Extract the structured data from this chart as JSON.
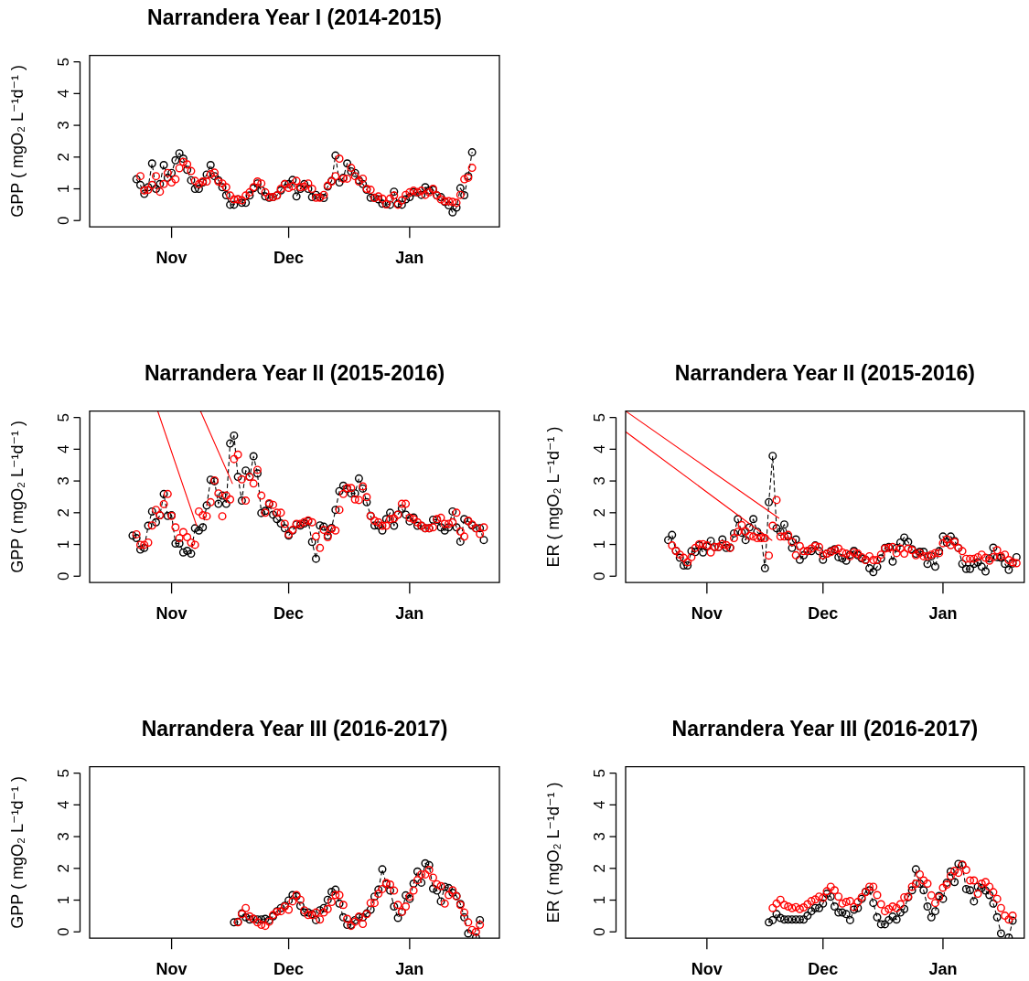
{
  "chart_data": [
    {
      "type": "scatter",
      "title": "Narrandera Year I (2014-2015)",
      "ylabel": "GPP ( mgO₂ L⁻¹d⁻¹ )",
      "marker": "circle",
      "line_style": "dashed",
      "xlim": [
        "2014-10-11",
        "2015-01-24"
      ],
      "xticks": [
        {
          "value": "2014-11-01",
          "label": "Nov"
        },
        {
          "value": "2014-12-01",
          "label": "Dec"
        },
        {
          "value": "2015-01-01",
          "label": "Jan"
        }
      ],
      "ylim": [
        -0.2,
        5.2
      ],
      "yticks": [
        0,
        1,
        2,
        3,
        4,
        5
      ],
      "x": [
        "2014-10-23",
        "2014-10-24",
        "2014-10-25",
        "2014-10-26",
        "2014-10-27",
        "2014-10-28",
        "2014-10-29",
        "2014-10-30",
        "2014-10-31",
        "2014-11-01",
        "2014-11-02",
        "2014-11-03",
        "2014-11-04",
        "2014-11-05",
        "2014-11-06",
        "2014-11-07",
        "2014-11-08",
        "2014-11-09",
        "2014-11-10",
        "2014-11-11",
        "2014-11-12",
        "2014-11-13",
        "2014-11-14",
        "2014-11-15",
        "2014-11-16",
        "2014-11-17",
        "2014-11-18",
        "2014-11-19",
        "2014-11-20",
        "2014-11-21",
        "2014-11-22",
        "2014-11-23",
        "2014-11-24",
        "2014-11-25",
        "2014-11-26",
        "2014-11-27",
        "2014-11-28",
        "2014-11-29",
        "2014-11-30",
        "2014-12-01",
        "2014-12-02",
        "2014-12-03",
        "2014-12-04",
        "2014-12-05",
        "2014-12-06",
        "2014-12-07",
        "2014-12-08",
        "2014-12-09",
        "2014-12-10",
        "2014-12-11",
        "2014-12-12",
        "2014-12-13",
        "2014-12-14",
        "2014-12-15",
        "2014-12-16",
        "2014-12-17",
        "2014-12-18",
        "2014-12-19",
        "2014-12-20",
        "2014-12-21",
        "2014-12-22",
        "2014-12-23",
        "2014-12-24",
        "2014-12-25",
        "2014-12-26",
        "2014-12-27",
        "2014-12-28",
        "2014-12-29",
        "2014-12-30",
        "2014-12-31",
        "2015-01-01",
        "2015-01-02",
        "2015-01-03",
        "2015-01-04",
        "2015-01-05",
        "2015-01-06",
        "2015-01-07",
        "2015-01-08",
        "2015-01-09",
        "2015-01-10",
        "2015-01-11",
        "2015-01-12",
        "2015-01-13",
        "2015-01-14",
        "2015-01-15",
        "2015-01-16",
        "2015-01-17"
      ],
      "series": [
        {
          "type": "line",
          "color": "#000000",
          "values": [
            1.3,
            1.12,
            0.84,
            1.05,
            1.8,
            1.0,
            1.15,
            1.75,
            1.35,
            1.5,
            1.9,
            2.12,
            1.95,
            1.6,
            1.27,
            1.0,
            1.0,
            1.2,
            1.45,
            1.75,
            1.4,
            1.27,
            1.05,
            0.8,
            0.5,
            0.5,
            0.67,
            0.56,
            0.56,
            0.79,
            1.02,
            1.17,
            0.95,
            0.76,
            0.72,
            0.74,
            0.79,
            0.95,
            1.15,
            1.15,
            1.28,
            0.76,
            1.0,
            1.15,
            1.0,
            0.74,
            0.81,
            0.74,
            0.71,
            1.07,
            1.25,
            2.05,
            1.2,
            1.35,
            1.8,
            1.55,
            1.5,
            1.27,
            1.15,
            0.97,
            0.72,
            0.72,
            0.67,
            0.53,
            0.52,
            0.5,
            0.91,
            0.53,
            0.5,
            0.67,
            0.74,
            0.89,
            0.89,
            0.81,
            1.05,
            0.95,
            0.97,
            0.79,
            0.74,
            0.59,
            0.48,
            0.26,
            0.41,
            1.02,
            0.8,
            1.4,
            2.15
          ]
        },
        {
          "color": "#ff0000",
          "values": [
            null,
            1.4,
            0.95,
            0.97,
            1.12,
            1.4,
            0.91,
            1.15,
            1.5,
            1.2,
            1.3,
            1.65,
            1.85,
            1.77,
            1.56,
            1.25,
            1.15,
            1.23,
            1.23,
            1.46,
            1.51,
            1.23,
            1.17,
            1.05,
            0.79,
            0.67,
            0.67,
            0.64,
            0.79,
            0.89,
            1.05,
            1.23,
            1.17,
            0.89,
            0.74,
            0.74,
            0.79,
            1.0,
            1.15,
            1.03,
            1.08,
            1.25,
            1.05,
            1.07,
            1.17,
            1.0,
            0.72,
            0.72,
            0.81,
            1.1,
            1.23,
            1.4,
            1.95,
            1.32,
            1.32,
            1.66,
            1.4,
            1.23,
            1.32,
            1.0,
            0.97,
            0.71,
            0.76,
            0.69,
            0.51,
            0.69,
            0.79,
            0.5,
            0.64,
            0.81,
            0.89,
            0.94,
            0.89,
            0.94,
            0.81,
            0.89,
            1.0,
            0.79,
            0.67,
            0.61,
            0.61,
            0.59,
            0.56,
            0.81,
            1.3,
            1.35,
            1.66
          ]
        }
      ]
    },
    {
      "type": "scatter",
      "title": "Narrandera Year II (2015-2016)",
      "ylabel": "GPP ( mgO₂ L⁻¹d⁻¹ )",
      "marker": "circle",
      "line_style": "dashed",
      "xlim": [
        "2015-10-11",
        "2016-01-24"
      ],
      "xticks": [
        {
          "value": "2015-11-01",
          "label": "Nov"
        },
        {
          "value": "2015-12-01",
          "label": "Dec"
        },
        {
          "value": "2016-01-01",
          "label": "Jan"
        }
      ],
      "ylim": [
        -0.2,
        5.2
      ],
      "yticks": [
        0,
        1,
        2,
        3,
        4,
        5
      ],
      "x": [
        "2015-10-22",
        "2015-10-23",
        "2015-10-24",
        "2015-10-25",
        "2015-10-26",
        "2015-10-27",
        "2015-10-28",
        "2015-10-29",
        "2015-10-30",
        "2015-10-31",
        "2015-11-01",
        "2015-11-02",
        "2015-11-03",
        "2015-11-04",
        "2015-11-05",
        "2015-11-06",
        "2015-11-07",
        "2015-11-08",
        "2015-11-09",
        "2015-11-10",
        "2015-11-11",
        "2015-11-12",
        "2015-11-13",
        "2015-11-14",
        "2015-11-15",
        "2015-11-16",
        "2015-11-17",
        "2015-11-18",
        "2015-11-19",
        "2015-11-20",
        "2015-11-21",
        "2015-11-22",
        "2015-11-23",
        "2015-11-24",
        "2015-11-25",
        "2015-11-26",
        "2015-11-27",
        "2015-11-28",
        "2015-11-29",
        "2015-11-30",
        "2015-12-01",
        "2015-12-02",
        "2015-12-03",
        "2015-12-04",
        "2015-12-05",
        "2015-12-06",
        "2015-12-07",
        "2015-12-08",
        "2015-12-09",
        "2015-12-10",
        "2015-12-11",
        "2015-12-12",
        "2015-12-13",
        "2015-12-14",
        "2015-12-15",
        "2015-12-16",
        "2015-12-17",
        "2015-12-18",
        "2015-12-19",
        "2015-12-20",
        "2015-12-21",
        "2015-12-22",
        "2015-12-23",
        "2015-12-24",
        "2015-12-25",
        "2015-12-26",
        "2015-12-27",
        "2015-12-28",
        "2015-12-29",
        "2015-12-30",
        "2015-12-31",
        "2016-01-01",
        "2016-01-02",
        "2016-01-03",
        "2016-01-04",
        "2016-01-05",
        "2016-01-06",
        "2016-01-07",
        "2016-01-08",
        "2016-01-09",
        "2016-01-10",
        "2016-01-11",
        "2016-01-12",
        "2016-01-13",
        "2016-01-14",
        "2016-01-15",
        "2016-01-16",
        "2016-01-17",
        "2016-01-18",
        "2016-01-19",
        "2016-01-20"
      ],
      "series": [
        {
          "type": "line",
          "color": "#000000",
          "values": [
            1.28,
            1.2,
            0.84,
            0.89,
            1.59,
            2.04,
            1.7,
            1.92,
            2.59,
            1.9,
            1.92,
            1.03,
            1.03,
            0.75,
            0.8,
            0.71,
            1.51,
            1.44,
            1.54,
            2.23,
            3.04,
            2.99,
            2.28,
            2.54,
            2.28,
            4.18,
            4.43,
            3.13,
            2.38,
            3.33,
            3.13,
            3.78,
            3.24,
            1.99,
            2.06,
            2.27,
            1.94,
            1.8,
            1.66,
            1.51,
            1.28,
            1.44,
            1.63,
            1.6,
            1.66,
            1.73,
            1.08,
            0.55,
            1.6,
            1.56,
            1.28,
            1.52,
            2.09,
            2.68,
            2.85,
            2.75,
            2.61,
            2.61,
            3.08,
            2.76,
            2.33,
            1.9,
            1.6,
            1.6,
            1.44,
            1.8,
            2.0,
            1.59,
            1.94,
            2.13,
            1.94,
            1.73,
            1.85,
            1.59,
            1.59,
            1.51,
            1.51,
            1.78,
            1.78,
            1.54,
            1.44,
            1.54,
            2.04,
            1.54,
            1.09,
            1.8,
            1.73,
            1.6,
            1.51,
            1.51,
            1.14
          ]
        },
        {
          "color": "#ff0000",
          "values": [
            null,
            1.32,
            0.99,
            0.99,
            1.06,
            1.6,
            2.09,
            1.92,
            2.27,
            2.59,
            1.9,
            1.54,
            1.2,
            1.39,
            1.23,
            1.06,
            0.99,
            2.04,
            1.92,
            1.89,
            2.33,
            3.02,
            2.61,
            1.89,
            2.54,
            2.42,
            3.69,
            3.83,
            3.05,
            2.38,
            3.13,
            2.92,
            3.35,
            2.54,
            2.0,
            2.3,
            2.25,
            2.0,
            2.0,
            1.65,
            1.32,
            1.46,
            1.65,
            1.65,
            1.71,
            1.76,
            1.7,
            1.25,
            0.89,
            1.46,
            1.23,
            1.49,
            1.44,
            2.09,
            2.59,
            2.78,
            2.78,
            2.42,
            2.4,
            2.83,
            2.49,
            1.9,
            1.75,
            1.7,
            1.59,
            1.59,
            1.8,
            1.82,
            1.94,
            2.28,
            2.28,
            1.84,
            1.8,
            1.7,
            1.59,
            1.51,
            1.51,
            1.54,
            1.8,
            1.84,
            1.65,
            1.65,
            1.7,
            2.0,
            1.41,
            1.25,
            1.75,
            1.63,
            1.51,
            1.33,
            1.54
          ]
        },
        {
          "type": "line",
          "color": "#ff0000",
          "marker": "none",
          "line_style": "solid",
          "x": [
            "2015-10-28T11:00",
            "2015-11-07T10:00"
          ],
          "values": [
            5.2,
            1.59
          ]
        },
        {
          "type": "line",
          "color": "#ff0000",
          "marker": "none",
          "line_style": "solid",
          "x": [
            "2015-11-08T10:00",
            "2015-11-16T14:00"
          ],
          "values": [
            5.2,
            2.92
          ]
        }
      ]
    },
    {
      "type": "scatter",
      "title": "Narrandera Year II (2015-2016)",
      "ylabel": "ER ( mgO₂ L⁻¹d⁻¹ )",
      "marker": "circle",
      "line_style": "dashed",
      "xlim": [
        "2015-10-11",
        "2016-01-22"
      ],
      "xticks": [
        {
          "value": "2015-11-01",
          "label": "Nov"
        },
        {
          "value": "2015-12-01",
          "label": "Dec"
        },
        {
          "value": "2016-01-01",
          "label": "Jan"
        }
      ],
      "ylim": [
        -0.2,
        5.2
      ],
      "yticks": [
        0,
        1,
        2,
        3,
        4,
        5
      ],
      "x": [
        "2015-10-22",
        "2015-10-23",
        "2015-10-24",
        "2015-10-25",
        "2015-10-26",
        "2015-10-27",
        "2015-10-28",
        "2015-10-29",
        "2015-10-30",
        "2015-10-31",
        "2015-11-01",
        "2015-11-02",
        "2015-11-03",
        "2015-11-04",
        "2015-11-05",
        "2015-11-06",
        "2015-11-07",
        "2015-11-08",
        "2015-11-09",
        "2015-11-10",
        "2015-11-11",
        "2015-11-12",
        "2015-11-13",
        "2015-11-14",
        "2015-11-15",
        "2015-11-16",
        "2015-11-17",
        "2015-11-18",
        "2015-11-19",
        "2015-11-20",
        "2015-11-21",
        "2015-11-22",
        "2015-11-23",
        "2015-11-24",
        "2015-11-25",
        "2015-11-26",
        "2015-11-27",
        "2015-11-28",
        "2015-11-29",
        "2015-11-30",
        "2015-12-01",
        "2015-12-02",
        "2015-12-03",
        "2015-12-04",
        "2015-12-05",
        "2015-12-06",
        "2015-12-07",
        "2015-12-08",
        "2015-12-09",
        "2015-12-10",
        "2015-12-11",
        "2015-12-12",
        "2015-12-13",
        "2015-12-14",
        "2015-12-15",
        "2015-12-16",
        "2015-12-17",
        "2015-12-18",
        "2015-12-19",
        "2015-12-20",
        "2015-12-21",
        "2015-12-22",
        "2015-12-23",
        "2015-12-24",
        "2015-12-25",
        "2015-12-26",
        "2015-12-27",
        "2015-12-28",
        "2015-12-29",
        "2015-12-30",
        "2015-12-31",
        "2016-01-01",
        "2016-01-02",
        "2016-01-03",
        "2016-01-04",
        "2016-01-05",
        "2016-01-06",
        "2016-01-07",
        "2016-01-08",
        "2016-01-09",
        "2016-01-10",
        "2016-01-11",
        "2016-01-12",
        "2016-01-13",
        "2016-01-14",
        "2016-01-15",
        "2016-01-16",
        "2016-01-17",
        "2016-01-18",
        "2016-01-19",
        "2016-01-20"
      ],
      "series": [
        {
          "type": "line",
          "color": "#000000",
          "values": [
            1.14,
            1.3,
            0.8,
            0.58,
            0.34,
            0.34,
            0.79,
            0.76,
            0.97,
            0.75,
            0.94,
            1.11,
            0.92,
            0.92,
            1.16,
            0.89,
            0.9,
            1.35,
            1.8,
            1.37,
            1.14,
            1.54,
            1.8,
            1.4,
            1.25,
            0.25,
            2.33,
            3.79,
            1.51,
            1.4,
            1.63,
            1.25,
            0.89,
            1.16,
            0.52,
            0.66,
            0.79,
            0.79,
            0.97,
            0.79,
            0.52,
            0.71,
            0.79,
            0.85,
            0.6,
            0.56,
            0.49,
            0.68,
            0.8,
            0.66,
            0.56,
            0.52,
            0.25,
            0.13,
            0.3,
            0.56,
            0.89,
            0.92,
            0.46,
            0.89,
            1.06,
            1.22,
            1.08,
            0.85,
            0.71,
            0.77,
            0.77,
            0.39,
            0.63,
            0.3,
            0.79,
            1.25,
            1.06,
            1.25,
            1.11,
            0.89,
            0.39,
            0.23,
            0.23,
            0.39,
            0.44,
            0.3,
            0.15,
            0.56,
            0.9,
            0.6,
            0.58,
            0.39,
            0.2,
            0.4,
            0.6
          ]
        },
        {
          "color": "#ff0000",
          "values": [
            null,
            0.97,
            0.8,
            0.68,
            0.58,
            0.44,
            0.6,
            0.89,
            1.01,
            1.01,
            0.97,
            0.75,
            0.92,
            0.92,
            1.01,
            0.98,
            0.89,
            1.2,
            1.4,
            1.61,
            1.41,
            1.27,
            1.25,
            1.2,
            1.2,
            1.2,
            0.65,
            1.59,
            2.4,
            1.25,
            1.25,
            1.3,
            1.08,
            0.66,
            0.95,
            0.79,
            0.79,
            0.87,
            0.95,
            0.92,
            0.66,
            0.71,
            0.76,
            0.82,
            0.87,
            0.75,
            0.71,
            0.63,
            0.75,
            0.71,
            0.6,
            0.51,
            0.63,
            0.51,
            0.51,
            0.68,
            0.87,
            0.89,
            0.92,
            0.73,
            0.87,
            0.71,
            0.87,
            0.82,
            0.66,
            0.73,
            0.63,
            0.63,
            0.68,
            0.73,
            0.73,
            1.04,
            1.16,
            0.98,
            1.08,
            0.89,
            0.79,
            0.55,
            0.55,
            0.55,
            0.6,
            0.68,
            0.58,
            0.49,
            0.6,
            0.82,
            0.63,
            0.68,
            0.51,
            0.44,
            0.41
          ]
        },
        {
          "type": "line",
          "color": "#ff0000",
          "marker": "none",
          "line_style": "solid",
          "x": [
            "2015-10-11",
            "2015-11-19T14:00"
          ],
          "values": [
            5.2,
            1.83
          ]
        },
        {
          "type": "line",
          "color": "#ff0000",
          "marker": "none",
          "line_style": "solid",
          "x": [
            "2015-10-11",
            "2015-11-17T19:00"
          ],
          "values": [
            4.55,
            1.13
          ]
        }
      ]
    },
    {
      "type": "scatter",
      "title": "Narrandera Year III (2016-2017)",
      "ylabel": "GPP ( mgO₂ L⁻¹d⁻¹ )",
      "marker": "circle",
      "line_style": "dashed",
      "xlim": [
        "2016-10-11",
        "2017-01-24"
      ],
      "xticks": [
        {
          "value": "2016-11-01",
          "label": "Nov"
        },
        {
          "value": "2016-12-01",
          "label": "Dec"
        },
        {
          "value": "2017-01-01",
          "label": "Jan"
        }
      ],
      "ylim": [
        -0.2,
        5.2
      ],
      "yticks": [
        0,
        1,
        2,
        3,
        4,
        5
      ],
      "x": [
        "2016-11-17",
        "2016-11-18",
        "2016-11-19",
        "2016-11-20",
        "2016-11-21",
        "2016-11-22",
        "2016-11-23",
        "2016-11-24",
        "2016-11-25",
        "2016-11-26",
        "2016-11-27",
        "2016-11-28",
        "2016-11-29",
        "2016-11-30",
        "2016-12-01",
        "2016-12-02",
        "2016-12-03",
        "2016-12-04",
        "2016-12-05",
        "2016-12-06",
        "2016-12-07",
        "2016-12-08",
        "2016-12-09",
        "2016-12-10",
        "2016-12-11",
        "2016-12-12",
        "2016-12-13",
        "2016-12-14",
        "2016-12-15",
        "2016-12-16",
        "2016-12-17",
        "2016-12-18",
        "2016-12-19",
        "2016-12-20",
        "2016-12-21",
        "2016-12-22",
        "2016-12-23",
        "2016-12-24",
        "2016-12-25",
        "2016-12-26",
        "2016-12-27",
        "2016-12-28",
        "2016-12-29",
        "2016-12-30",
        "2016-12-31",
        "2017-01-01",
        "2017-01-02",
        "2017-01-03",
        "2017-01-04",
        "2017-01-05",
        "2017-01-06",
        "2017-01-07",
        "2017-01-08",
        "2017-01-09",
        "2017-01-10",
        "2017-01-11",
        "2017-01-12",
        "2017-01-13",
        "2017-01-14",
        "2017-01-15",
        "2017-01-16",
        "2017-01-17",
        "2017-01-18",
        "2017-01-19"
      ],
      "series": [
        {
          "type": "line",
          "color": "#000000",
          "values": [
            0.3,
            0.32,
            0.58,
            0.46,
            0.39,
            0.41,
            0.39,
            0.39,
            0.41,
            0.37,
            0.49,
            0.65,
            0.75,
            0.82,
            0.99,
            1.16,
            1.12,
            0.82,
            0.61,
            0.61,
            0.56,
            0.37,
            0.68,
            0.75,
            1.01,
            1.26,
            1.33,
            0.89,
            0.46,
            0.22,
            0.22,
            0.37,
            0.46,
            0.46,
            0.58,
            0.7,
            1.11,
            1.33,
            1.97,
            1.5,
            1.3,
            0.8,
            0.44,
            0.63,
            1.15,
            1.04,
            1.52,
            1.9,
            1.55,
            2.16,
            2.1,
            1.36,
            1.3,
            0.96,
            1.42,
            1.38,
            1.23,
            1.13,
            0.88,
            0.46,
            -0.05,
            null,
            -0.18,
            0.37
          ]
        },
        {
          "color": "#ff0000",
          "values": [
            null,
            0.3,
            0.56,
            0.75,
            0.49,
            0.41,
            0.3,
            0.22,
            0.19,
            0.32,
            0.53,
            0.63,
            0.65,
            0.8,
            0.7,
            0.96,
            1.16,
            1.01,
            0.68,
            0.53,
            0.53,
            0.61,
            0.39,
            0.61,
            0.72,
            0.94,
            1.16,
            1.16,
            0.85,
            0.41,
            0.19,
            0.32,
            0.48,
            0.25,
            0.56,
            0.91,
            0.91,
            1.2,
            1.35,
            1.54,
            1.49,
            1.3,
            0.85,
            0.63,
            0.8,
            1.11,
            1.3,
            1.63,
            1.81,
            1.81,
            1.95,
            1.71,
            1.5,
            1.44,
            0.89,
            1.16,
            1.31,
            1.12,
            0.85,
            0.61,
            0.3,
            0.06,
            0.0,
            0.22
          ]
        }
      ]
    },
    {
      "type": "scatter",
      "title": "Narrandera Year III (2016-2017)",
      "ylabel": "ER ( mgO₂ L⁻¹d⁻¹ )",
      "marker": "circle",
      "line_style": "dashed",
      "xlim": [
        "2016-10-11",
        "2017-01-22"
      ],
      "xticks": [
        {
          "value": "2016-11-01",
          "label": "Nov"
        },
        {
          "value": "2016-12-01",
          "label": "Dec"
        },
        {
          "value": "2017-01-01",
          "label": "Jan"
        }
      ],
      "ylim": [
        -0.2,
        5.2
      ],
      "yticks": [
        0,
        1,
        2,
        3,
        4,
        5
      ],
      "x": [
        "2016-11-17",
        "2016-11-18",
        "2016-11-19",
        "2016-11-20",
        "2016-11-21",
        "2016-11-22",
        "2016-11-23",
        "2016-11-24",
        "2016-11-25",
        "2016-11-26",
        "2016-11-27",
        "2016-11-28",
        "2016-11-29",
        "2016-11-30",
        "2016-12-01",
        "2016-12-02",
        "2016-12-03",
        "2016-12-04",
        "2016-12-05",
        "2016-12-06",
        "2016-12-07",
        "2016-12-08",
        "2016-12-09",
        "2016-12-10",
        "2016-12-11",
        "2016-12-12",
        "2016-12-13",
        "2016-12-14",
        "2016-12-15",
        "2016-12-16",
        "2016-12-17",
        "2016-12-18",
        "2016-12-19",
        "2016-12-20",
        "2016-12-21",
        "2016-12-22",
        "2016-12-23",
        "2016-12-24",
        "2016-12-25",
        "2016-12-26",
        "2016-12-27",
        "2016-12-28",
        "2016-12-29",
        "2016-12-30",
        "2016-12-31",
        "2017-01-01",
        "2017-01-02",
        "2017-01-03",
        "2017-01-04",
        "2017-01-05",
        "2017-01-06",
        "2017-01-07",
        "2017-01-08",
        "2017-01-09",
        "2017-01-10",
        "2017-01-11",
        "2017-01-12",
        "2017-01-13",
        "2017-01-14",
        "2017-01-15",
        "2017-01-16",
        "2017-01-17",
        "2017-01-18",
        "2017-01-19"
      ],
      "series": [
        {
          "type": "line",
          "color": "#000000",
          "values": [
            0.3,
            0.37,
            0.56,
            0.44,
            0.39,
            0.39,
            0.39,
            0.39,
            0.39,
            0.39,
            0.51,
            0.65,
            0.75,
            0.75,
            0.89,
            1.2,
            1.11,
            0.8,
            0.61,
            0.61,
            0.56,
            0.37,
            0.7,
            0.75,
            1.04,
            1.26,
            1.31,
            0.91,
            0.46,
            0.24,
            0.24,
            0.37,
            0.48,
            0.39,
            0.61,
            0.72,
            1.09,
            1.31,
            1.97,
            1.52,
            1.31,
            0.8,
            0.46,
            0.65,
            1.13,
            1.04,
            1.55,
            1.9,
            1.57,
            2.14,
            2.1,
            1.35,
            1.31,
            0.96,
            1.42,
            1.38,
            1.3,
            1.16,
            0.89,
            0.46,
            -0.05,
            null,
            -0.18,
            0.35
          ]
        },
        {
          "color": "#ff0000",
          "values": [
            null,
            0.75,
            0.89,
            1.01,
            0.85,
            0.8,
            0.75,
            0.78,
            0.72,
            0.77,
            0.87,
            0.97,
            1.02,
            1.11,
            1.07,
            1.28,
            1.42,
            1.31,
            1.11,
            0.89,
            0.94,
            0.97,
            0.78,
            0.94,
            1.09,
            1.25,
            1.42,
            1.42,
            1.16,
            0.87,
            0.65,
            0.72,
            0.8,
            0.75,
            0.87,
            1.09,
            1.11,
            1.42,
            1.52,
            1.81,
            1.62,
            1.52,
            1.15,
            0.91,
            1.09,
            1.39,
            1.49,
            1.76,
            1.92,
            1.86,
            2.12,
            1.95,
            1.62,
            1.62,
            1.2,
            1.52,
            1.57,
            1.42,
            1.25,
            1.04,
            0.75,
            0.51,
            0.39,
            0.51
          ]
        }
      ]
    }
  ]
}
